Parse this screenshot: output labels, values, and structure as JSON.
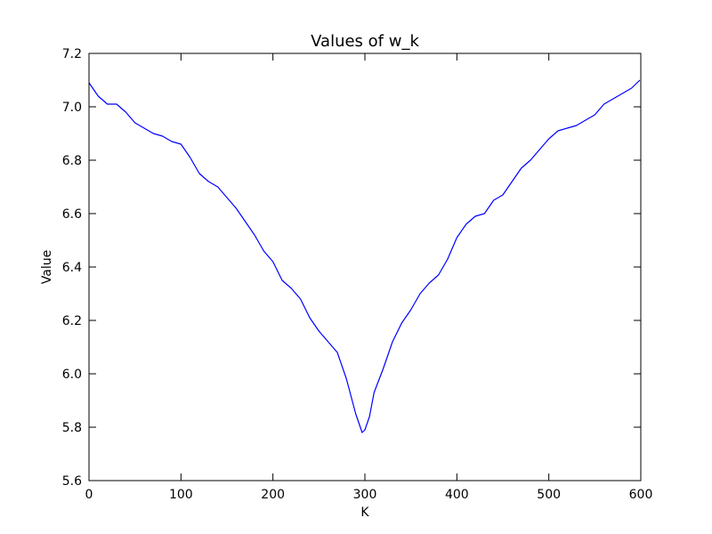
{
  "chart_data": {
    "type": "line",
    "title": "Values of w_k",
    "xlabel": "K",
    "ylabel": "Value",
    "xlim": [
      0,
      600
    ],
    "ylim": [
      5.6,
      7.2
    ],
    "xticks": [
      0,
      100,
      200,
      300,
      400,
      500,
      600
    ],
    "xtick_labels": [
      "0",
      "100",
      "200",
      "300",
      "400",
      "500",
      "600"
    ],
    "yticks": [
      5.6,
      5.8,
      6.0,
      6.2,
      6.4,
      6.6,
      6.8,
      7.0,
      7.2
    ],
    "ytick_labels": [
      "5.6",
      "5.8",
      "6.0",
      "6.2",
      "6.4",
      "6.6",
      "6.8",
      "7.0",
      "7.2"
    ],
    "grid": false,
    "series": [
      {
        "color": "#0000ff",
        "x": [
          0,
          10,
          20,
          30,
          40,
          50,
          60,
          70,
          80,
          90,
          100,
          110,
          120,
          130,
          140,
          150,
          160,
          170,
          180,
          190,
          200,
          210,
          220,
          230,
          240,
          250,
          260,
          270,
          280,
          290,
          297,
          300,
          305,
          310,
          320,
          330,
          340,
          350,
          360,
          370,
          380,
          390,
          400,
          410,
          420,
          430,
          440,
          450,
          460,
          470,
          480,
          490,
          500,
          510,
          520,
          530,
          540,
          550,
          560,
          570,
          580,
          590,
          599
        ],
        "y": [
          7.09,
          7.04,
          7.01,
          7.01,
          6.98,
          6.94,
          6.92,
          6.9,
          6.89,
          6.87,
          6.86,
          6.81,
          6.75,
          6.72,
          6.7,
          6.66,
          6.62,
          6.57,
          6.52,
          6.46,
          6.42,
          6.35,
          6.32,
          6.28,
          6.21,
          6.16,
          6.12,
          6.08,
          5.98,
          5.85,
          5.78,
          5.79,
          5.84,
          5.93,
          6.02,
          6.12,
          6.19,
          6.24,
          6.3,
          6.34,
          6.37,
          6.43,
          6.51,
          6.56,
          6.59,
          6.6,
          6.65,
          6.67,
          6.72,
          6.77,
          6.8,
          6.84,
          6.88,
          6.91,
          6.92,
          6.93,
          6.95,
          6.97,
          7.01,
          7.03,
          7.05,
          7.07,
          7.1
        ]
      }
    ]
  }
}
